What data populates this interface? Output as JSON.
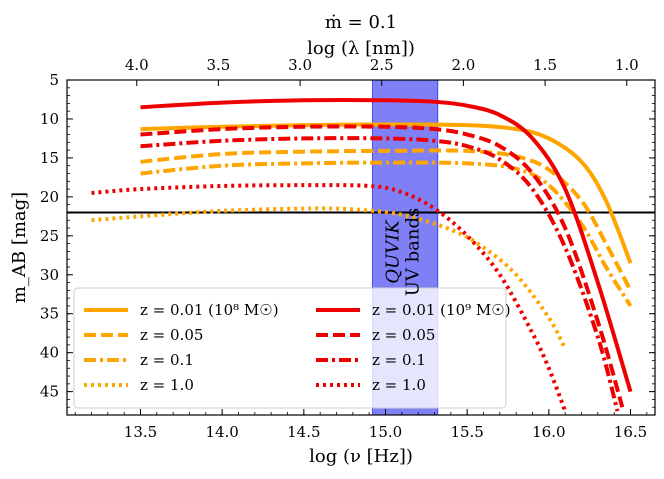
{
  "chart_data": {
    "type": "line",
    "title": "ṁ = 0.1",
    "xlabel": "log (ν [Hz])",
    "ylabel": "m_AB [mag]",
    "top_xlabel": "log (λ [nm])",
    "xlim": [
      13.05,
      16.65
    ],
    "ylim": [
      48,
      5
    ],
    "y_inverted": true,
    "x_ticks": [
      "13.5",
      "14.0",
      "14.5",
      "15.0",
      "15.5",
      "16.0",
      "16.5"
    ],
    "x_tick_values": [
      13.5,
      14.0,
      14.5,
      15.0,
      15.5,
      16.0,
      16.5
    ],
    "y_ticks": [
      "5",
      "10",
      "15",
      "20",
      "25",
      "30",
      "35",
      "40",
      "45"
    ],
    "y_tick_values": [
      5,
      10,
      15,
      20,
      25,
      30,
      35,
      40,
      45
    ],
    "top_ticks": [
      "4.0",
      "3.5",
      "3.0",
      "2.5",
      "2.0",
      "1.5",
      "1.0"
    ],
    "top_tick_nu": [
      13.477,
      13.977,
      14.477,
      14.977,
      15.477,
      15.977,
      16.477
    ],
    "horizontal_line": 22,
    "band": {
      "x0": 14.92,
      "x1": 15.32,
      "color": "#0000ee",
      "label_line1": "QUVIK",
      "label_line2": "UV bands"
    },
    "series": [
      {
        "name": "z = 0.01 (10⁸ M☉)",
        "color": "#FFA500",
        "style": "solid",
        "x": [
          13.5,
          14.0,
          14.5,
          15.0,
          15.5,
          15.8,
          16.0,
          16.2,
          16.35,
          16.5
        ],
        "y": [
          11.3,
          11.0,
          10.8,
          10.7,
          10.8,
          11.3,
          12.5,
          15.5,
          20.5,
          28.5
        ]
      },
      {
        "name": "z = 0.05",
        "color": "#FFA500",
        "style": "dashed",
        "x": [
          13.5,
          14.0,
          14.5,
          15.0,
          15.5,
          15.8,
          16.0,
          16.2,
          16.35,
          16.5
        ],
        "y": [
          15.5,
          14.5,
          14.2,
          14.1,
          14.1,
          14.8,
          16.5,
          20.5,
          26.0,
          32.0
        ]
      },
      {
        "name": "z = 0.1",
        "color": "#FFA500",
        "style": "dashdot",
        "x": [
          13.5,
          14.0,
          14.5,
          15.0,
          15.5,
          15.8,
          16.0,
          16.2,
          16.35,
          16.5
        ],
        "y": [
          17.0,
          16.0,
          15.7,
          15.6,
          15.7,
          16.4,
          18.5,
          23.5,
          29.0,
          34.0
        ]
      },
      {
        "name": "z = 1.0",
        "color": "#FFA500",
        "style": "dotted",
        "x": [
          13.2,
          13.5,
          14.0,
          14.5,
          14.8,
          15.1,
          15.4,
          15.6,
          15.8,
          16.0,
          16.1
        ],
        "y": [
          23.0,
          22.5,
          21.8,
          21.5,
          21.6,
          22.3,
          24.2,
          26.5,
          30.0,
          35.5,
          39.5
        ]
      },
      {
        "name": "z = 0.01 (10⁹ M☉)",
        "color": "#EE0000",
        "style": "solid",
        "x": [
          13.5,
          14.0,
          14.5,
          15.0,
          15.3,
          15.5,
          15.7,
          15.9,
          16.1,
          16.3,
          16.5
        ],
        "y": [
          8.5,
          7.9,
          7.6,
          7.6,
          7.8,
          8.3,
          9.5,
          12.5,
          19.0,
          31.0,
          45.0
        ]
      },
      {
        "name": "z = 0.05",
        "color": "#EE0000",
        "style": "dashed",
        "x": [
          13.5,
          14.0,
          14.5,
          15.0,
          15.3,
          15.5,
          15.7,
          15.9,
          16.1,
          16.3,
          16.45
        ],
        "y": [
          12.0,
          11.3,
          11.0,
          11.0,
          11.3,
          12.0,
          13.5,
          17.0,
          24.0,
          36.0,
          47.0
        ]
      },
      {
        "name": "z = 0.1",
        "color": "#EE0000",
        "style": "dashdot",
        "x": [
          13.5,
          14.0,
          14.5,
          15.0,
          15.3,
          15.5,
          15.7,
          15.9,
          16.1,
          16.3,
          16.42
        ],
        "y": [
          13.5,
          12.8,
          12.5,
          12.5,
          12.8,
          13.5,
          15.2,
          19.0,
          26.5,
          38.0,
          47.5
        ]
      },
      {
        "name": "z = 1.0",
        "color": "#EE0000",
        "style": "dotted",
        "x": [
          13.2,
          13.5,
          14.0,
          14.5,
          14.9,
          15.1,
          15.3,
          15.5,
          15.7,
          15.9,
          16.0,
          16.1
        ],
        "y": [
          19.5,
          19.0,
          18.6,
          18.5,
          18.6,
          19.4,
          21.5,
          25.0,
          30.0,
          37.5,
          42.0,
          47.5
        ]
      }
    ]
  }
}
